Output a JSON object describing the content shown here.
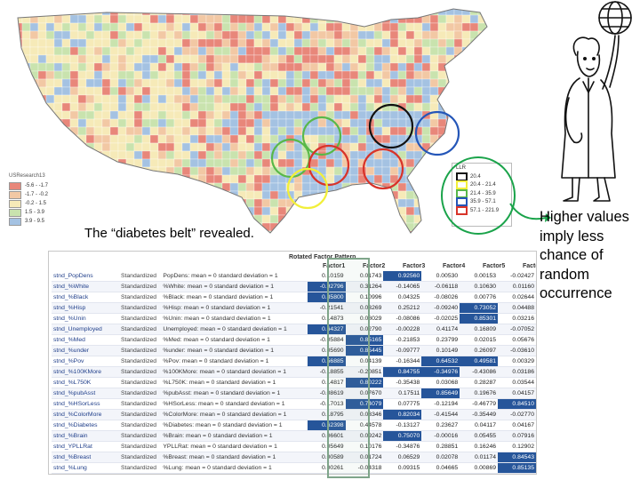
{
  "map_legend": {
    "source": "USResearch13",
    "items": [
      {
        "label": "-5.6 - -1.7",
        "color": "#e8877a"
      },
      {
        "label": "-1.7 - -0.2",
        "color": "#f2c8a4"
      },
      {
        "label": "-0.2 - 1.5",
        "color": "#f6eab8"
      },
      {
        "label": "1.5 - 3.9",
        "color": "#c9e3ae"
      },
      {
        "label": "3.9 - 9.5",
        "color": "#a4c2e2"
      }
    ]
  },
  "llr_legend": {
    "title": "LLR",
    "items": [
      {
        "label": "20.4",
        "color": "#111111"
      },
      {
        "label": "20.4 - 21.4",
        "color": "#f2ef3a"
      },
      {
        "label": "21.4 - 35.9",
        "color": "#58b848"
      },
      {
        "label": "35.9 - 57.1",
        "color": "#2456b8"
      },
      {
        "label": "57.1 - 221.9",
        "color": "#d8342a"
      }
    ]
  },
  "caption": "The “diabetes belt” revealed.",
  "annotation": "Higher values imply less chance of random occurrence",
  "table": {
    "title": "Rotated Factor Pattern",
    "factors": [
      "Factor1",
      "Factor2",
      "Factor3",
      "Factor4",
      "Factor5",
      "Factor6"
    ],
    "rows": [
      {
        "var": "stnd_PopDens",
        "std": "Standardized",
        "label": "PopDens: mean = 0 standard deviation = 1",
        "v": [
          "0.10159",
          "0.01743",
          "0.92560",
          "0.00530",
          "0.00153",
          "-0.02427"
        ],
        "hi": [
          2
        ]
      },
      {
        "var": "stnd_%White",
        "std": "Standardized",
        "label": "%White: mean = 0 standard deviation = 1",
        "v": [
          "-0.92796",
          "0.31264",
          "-0.14065",
          "-0.06118",
          "0.10630",
          "0.01160"
        ],
        "hi": [
          0
        ]
      },
      {
        "var": "stnd_%Black",
        "std": "Standardized",
        "label": "%Black: mean = 0 standard deviation = 1",
        "v": [
          "0.85800",
          "0.10996",
          "0.04325",
          "-0.08026",
          "0.00776",
          "0.02644"
        ],
        "hi": [
          0
        ]
      },
      {
        "var": "stnd_%Hisp",
        "std": "Standardized",
        "label": "%Hisp: mean = 0 standard deviation = 1",
        "v": [
          "-0.21541",
          "0.03269",
          "0.25212",
          "-0.09240",
          "0.73052",
          "0.04488"
        ],
        "hi": [
          4
        ]
      },
      {
        "var": "stnd_%Unin",
        "std": "Standardized",
        "label": "%Unin: mean = 0 standard deviation = 1",
        "v": [
          "0.14873",
          "0.08029",
          "-0.08086",
          "-0.02025",
          "0.85301",
          "0.03216"
        ],
        "hi": [
          4
        ]
      },
      {
        "var": "stnd_Unemployed",
        "std": "Standardized",
        "label": "Unemployed: mean = 0 standard deviation = 1",
        "v": [
          "0.64327",
          "0.02790",
          "-0.00228",
          "0.41174",
          "0.16809",
          "-0.07052"
        ],
        "hi": [
          0
        ]
      },
      {
        "var": "stnd_%Med",
        "std": "Standardized",
        "label": "%Med: mean = 0 standard deviation = 1",
        "v": [
          "-0.05884",
          "0.85165",
          "-0.21853",
          "0.23799",
          "0.02015",
          "0.05676"
        ],
        "hi": [
          1
        ]
      },
      {
        "var": "stnd_%under",
        "std": "Standardized",
        "label": "%under: mean = 0 standard deviation = 1",
        "v": [
          "0.05690",
          "0.85445",
          "-0.09777",
          "0.10149",
          "0.26097",
          "-0.03610"
        ],
        "hi": [
          1
        ]
      },
      {
        "var": "stnd_%Pov",
        "std": "Standardized",
        "label": "%Pov: mean = 0 standard deviation = 1",
        "v": [
          "0.56885",
          "0.04139",
          "-0.16344",
          "0.64532",
          "0.49581",
          "0.00329"
        ],
        "hi": [
          0,
          3,
          4
        ]
      },
      {
        "var": "stnd_%100KMore",
        "std": "Standardized",
        "label": "%100KMore: mean = 0 standard deviation = 1",
        "v": [
          "-0.18855",
          "-0.20851",
          "0.84755",
          "-0.34976",
          "-0.43086",
          "0.03186"
        ],
        "hi": [
          2,
          3
        ]
      },
      {
        "var": "stnd_%L750K",
        "std": "Standardized",
        "label": "%L750K: mean = 0 standard deviation = 1",
        "v": [
          "0.14817",
          "0.80222",
          "-0.35438",
          "0.03068",
          "0.28287",
          "0.03544"
        ],
        "hi": [
          1
        ]
      },
      {
        "var": "stnd_%pubAsst",
        "std": "Standardized",
        "label": "%pubAsst: mean = 0 standard deviation = 1",
        "v": [
          "-0.08619",
          "0.07670",
          "0.17511",
          "0.85649",
          "0.19676",
          "0.04157"
        ],
        "hi": [
          3
        ]
      },
      {
        "var": "stnd_%HSorLess",
        "std": "Standardized",
        "label": "%HSorLess: mean = 0 standard deviation = 1",
        "v": [
          "-0.17013",
          "0.74079",
          "0.07775",
          "-0.12194",
          "-0.46779",
          "0.84510"
        ],
        "hi": [
          1,
          5
        ]
      },
      {
        "var": "stnd_%ColorMore",
        "std": "Standardized",
        "label": "%ColorMore: mean = 0 standard deviation = 1",
        "v": [
          "0.18795",
          "0.03346",
          "0.82034",
          "-0.41544",
          "-0.35449",
          "-0.02770"
        ],
        "hi": [
          2
        ]
      },
      {
        "var": "stnd_%Diabetes",
        "std": "Standardized",
        "label": "%Diabetes: mean = 0 standard deviation = 1",
        "v": [
          "0.62398",
          "0.44578",
          "-0.13127",
          "0.23627",
          "0.04117",
          "0.04167"
        ],
        "hi": [
          0
        ]
      },
      {
        "var": "stnd_%Brain",
        "std": "Standardized",
        "label": "%Brain: mean = 0 standard deviation = 1",
        "v": [
          "0.06601",
          "0.09242",
          "0.75070",
          "-0.00016",
          "0.05455",
          "0.07916"
        ],
        "hi": [
          2
        ]
      },
      {
        "var": "stnd_YPLLRat",
        "std": "Standardized",
        "label": "YPLLRat: mean = 0 standard deviation = 1",
        "v": [
          "0.05649",
          "0.10176",
          "-0.34876",
          "0.28851",
          "0.16246",
          "0.12902"
        ],
        "hi": []
      },
      {
        "var": "stnd_%Breast",
        "std": "Standardized",
        "label": "%Breast: mean = 0 standard deviation = 1",
        "v": [
          "0.00589",
          "0.01724",
          "0.06529",
          "0.02078",
          "0.01174",
          "0.84543"
        ],
        "hi": [
          5
        ]
      },
      {
        "var": "stnd_%Lung",
        "std": "Standardized",
        "label": "%Lung: mean = 0 standard deviation = 1",
        "v": [
          "0.00261",
          "-0.04318",
          "0.09315",
          "0.04665",
          "0.00869",
          "0.85135"
        ],
        "hi": [
          5
        ]
      },
      {
        "var": "stnd_Mort",
        "std": "Standardized",
        "label": "Mort: mean = 0 standard deviation = 1",
        "v": [
          "0.54706",
          "0.22772",
          "-0.26469",
          "0.62946",
          "0.05298",
          "0.00882"
        ],
        "hi": [
          0,
          3
        ]
      }
    ]
  }
}
